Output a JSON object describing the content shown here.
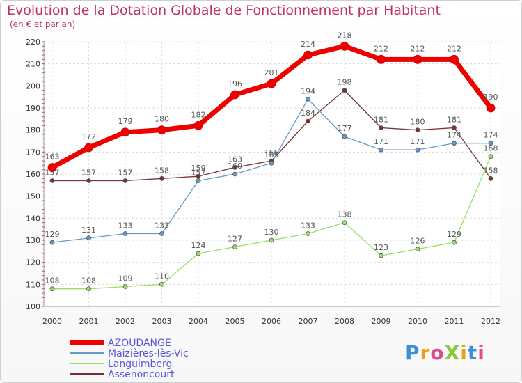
{
  "chart_data": {
    "type": "line",
    "title": "Evolution de la Dotation Globale de Fonctionnement par Habitant",
    "subtitle": "(en € et par an)",
    "x": [
      "2000",
      "2001",
      "2002",
      "2003",
      "2004",
      "2005",
      "2006",
      "2007",
      "2008",
      "2009",
      "2010",
      "2011",
      "2012"
    ],
    "ylim": [
      100,
      220
    ],
    "yticks": [
      100,
      110,
      120,
      130,
      140,
      150,
      160,
      170,
      180,
      190,
      200,
      210,
      220
    ],
    "grid": true,
    "legend_position": "bottom-left",
    "series": [
      {
        "name": "AZOUDANGE",
        "color": "#ee0000",
        "values": [
          163,
          172,
          179,
          180,
          182,
          196,
          201,
          214,
          218,
          212,
          212,
          212,
          190
        ]
      },
      {
        "name": "Maizières-lès-Vic",
        "color": "#6699cc",
        "values": [
          129,
          131,
          133,
          133,
          157,
          160,
          165,
          194,
          177,
          171,
          171,
          174,
          174
        ]
      },
      {
        "name": "Languimberg",
        "color": "#99dd66",
        "values": [
          108,
          108,
          109,
          110,
          124,
          127,
          130,
          133,
          138,
          123,
          126,
          129,
          168
        ]
      },
      {
        "name": "Assenoncourt",
        "color": "#773333",
        "values": [
          157,
          157,
          157,
          158,
          159,
          163,
          166,
          184,
          198,
          181,
          180,
          181,
          158
        ]
      }
    ]
  },
  "logo": {
    "text": "ProXiti"
  }
}
